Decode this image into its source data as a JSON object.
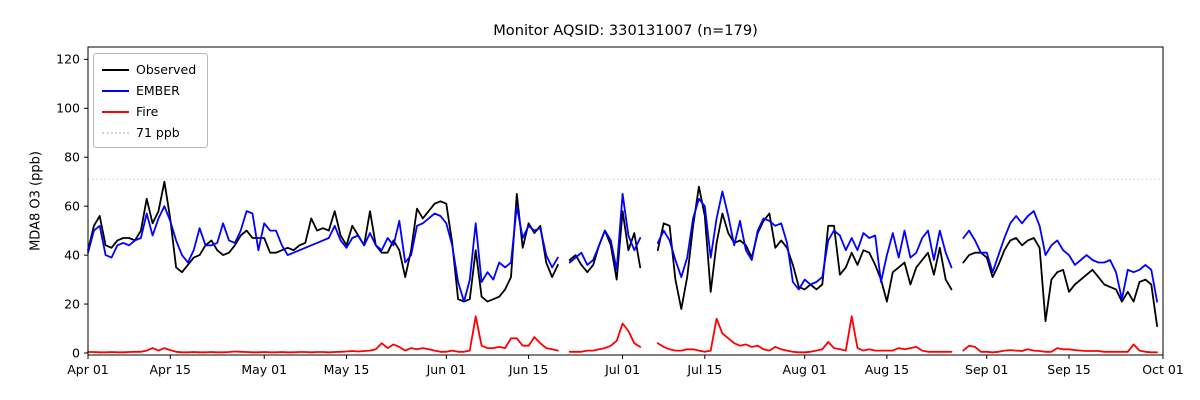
{
  "figure": {
    "title": "Monitor AQSID: 330131007 (n=179)",
    "ylabel": "MDA8 O3 (ppb)"
  },
  "chart_data": {
    "type": "line",
    "title": "Monitor AQSID: 330131007 (n=179)",
    "xlabel": "",
    "ylabel": "MDA8 O3 (ppb)",
    "x_unit": "day",
    "x_range": [
      "Apr 01",
      "Oct 01"
    ],
    "n_days": 183,
    "grid": false,
    "legend_position": "upper left",
    "y_ticks": [
      0,
      20,
      40,
      60,
      80,
      100,
      120
    ],
    "ylim": [
      -1,
      125
    ],
    "x_ticks": [
      {
        "label": "Apr 01",
        "day": 0
      },
      {
        "label": "Apr 15",
        "day": 14
      },
      {
        "label": "May 01",
        "day": 30
      },
      {
        "label": "May 15",
        "day": 44
      },
      {
        "label": "Jun 01",
        "day": 61
      },
      {
        "label": "Jun 15",
        "day": 75
      },
      {
        "label": "Jul 01",
        "day": 91
      },
      {
        "label": "Jul 15",
        "day": 105
      },
      {
        "label": "Aug 01",
        "day": 122
      },
      {
        "label": "Aug 15",
        "day": 136
      },
      {
        "label": "Sep 01",
        "day": 153
      },
      {
        "label": "Sep 15",
        "day": 167
      },
      {
        "label": "Oct 01",
        "day": 183
      }
    ],
    "threshold": {
      "value": 71,
      "label": "71 ppb",
      "color": "#d3d3d3",
      "style": "dotted"
    },
    "legend": [
      {
        "label": "Observed",
        "color": "#000000",
        "style": "solid"
      },
      {
        "label": "EMBER",
        "color": "#0000ff",
        "style": "solid"
      },
      {
        "label": "Fire",
        "color": "#ff0000",
        "style": "solid"
      },
      {
        "label": "71 ppb",
        "color": "#d3d3d3",
        "style": "dotted"
      }
    ],
    "missing_dates": [
      "Jun 21",
      "Jul 05",
      "Jul 06",
      "Aug 27"
    ],
    "series": [
      {
        "name": "Observed",
        "color": "#000000",
        "values": [
          42,
          52,
          56,
          44,
          43,
          46,
          47,
          47,
          46,
          50,
          63,
          53,
          58,
          70,
          55,
          35,
          33,
          36,
          39,
          40,
          44,
          46,
          42,
          40,
          41,
          44,
          48,
          50,
          47,
          47,
          47,
          41,
          41,
          42,
          43,
          42,
          44,
          45,
          55,
          50,
          51,
          50,
          58,
          48,
          44,
          52,
          48,
          44,
          58,
          44,
          41,
          41,
          46,
          42,
          31,
          42,
          59,
          55,
          58,
          61,
          62,
          61,
          45,
          22,
          21,
          22,
          42,
          23,
          21,
          22,
          23,
          26,
          31,
          65,
          43,
          53,
          49,
          52,
          37,
          31,
          36,
          null,
          38,
          40,
          36,
          33,
          36,
          44,
          50,
          44,
          30,
          58,
          42,
          49,
          35,
          null,
          null,
          42,
          53,
          52,
          30,
          18,
          31,
          52,
          68,
          56,
          25,
          45,
          57,
          49,
          45,
          46,
          44,
          39,
          49,
          54,
          57,
          43,
          46,
          43,
          36,
          27,
          26,
          28,
          26,
          28,
          52,
          52,
          32,
          35,
          41,
          36,
          42,
          41,
          36,
          30,
          21,
          33,
          35,
          37,
          28,
          35,
          38,
          41,
          32,
          43,
          30,
          26,
          null,
          37,
          40,
          41,
          41,
          39,
          31,
          36,
          42,
          46,
          47,
          44,
          46,
          47,
          43,
          13,
          30,
          33,
          34,
          25,
          28,
          30,
          32,
          34,
          31,
          28,
          27,
          26,
          21,
          25,
          21,
          29,
          30,
          28,
          11
        ]
      },
      {
        "name": "EMBER",
        "color": "#0000ff",
        "values": [
          41,
          50,
          52,
          40,
          39,
          44,
          45,
          44,
          46,
          47,
          57,
          48,
          55,
          60,
          54,
          46,
          40,
          37,
          42,
          51,
          44,
          44,
          45,
          53,
          46,
          45,
          50,
          58,
          57,
          42,
          53,
          50,
          50,
          44,
          40,
          41,
          42,
          43,
          44,
          45,
          46,
          47,
          52,
          46,
          43,
          47,
          48,
          44,
          49,
          44,
          42,
          47,
          44,
          54,
          37,
          40,
          52,
          53,
          55,
          57,
          56,
          53,
          44,
          29,
          21,
          30,
          53,
          29,
          33,
          30,
          37,
          35,
          37,
          60,
          47,
          52,
          50,
          51,
          40,
          35,
          39,
          null,
          37,
          39,
          41,
          36,
          38,
          44,
          50,
          46,
          34,
          65,
          48,
          42,
          47,
          null,
          null,
          45,
          50,
          46,
          38,
          31,
          39,
          55,
          63,
          60,
          39,
          55,
          66,
          56,
          44,
          54,
          42,
          38,
          50,
          55,
          54,
          52,
          53,
          45,
          29,
          26,
          30,
          28,
          29,
          31,
          46,
          50,
          48,
          42,
          47,
          42,
          49,
          47,
          48,
          29,
          40,
          49,
          39,
          50,
          39,
          41,
          47,
          50,
          38,
          50,
          41,
          35,
          null,
          47,
          50,
          46,
          41,
          41,
          33,
          40,
          47,
          53,
          56,
          53,
          56,
          58,
          52,
          40,
          44,
          46,
          42,
          40,
          36,
          38,
          40,
          38,
          37,
          37,
          38,
          33,
          22,
          34,
          33,
          34,
          36,
          34,
          21
        ]
      },
      {
        "name": "Fire",
        "color": "#ff0000",
        "values": [
          0.4,
          0.4,
          0.3,
          0.3,
          0.4,
          0.3,
          0.3,
          0.4,
          0.5,
          0.5,
          1,
          2,
          1,
          2,
          1.2,
          0.5,
          0.3,
          0.3,
          0.4,
          0.3,
          0.3,
          0.4,
          0.3,
          0.3,
          0.4,
          0.6,
          0.5,
          0.4,
          0.3,
          0.3,
          0.4,
          0.3,
          0.3,
          0.4,
          0.3,
          0.3,
          0.4,
          0.4,
          0.3,
          0.4,
          0.4,
          0.3,
          0.4,
          0.5,
          0.6,
          0.8,
          0.6,
          0.8,
          1,
          1.5,
          4,
          2,
          3.5,
          2.5,
          1,
          2,
          1.5,
          2,
          1.5,
          1,
          0.5,
          0.5,
          1,
          0.5,
          0.5,
          1,
          15,
          3,
          2,
          2,
          2.5,
          2,
          6,
          6,
          3,
          3,
          6.5,
          4,
          2,
          1.5,
          1,
          null,
          0.5,
          0.5,
          0.5,
          1,
          1,
          1.5,
          2,
          3,
          5,
          12,
          9,
          4,
          2.5,
          null,
          null,
          4,
          2.5,
          1.5,
          1,
          1,
          1.5,
          1.5,
          1,
          0.5,
          1,
          14,
          8,
          6,
          4,
          3,
          3.5,
          2.5,
          3,
          1.5,
          1,
          2.5,
          1.5,
          1,
          0.5,
          0.3,
          0.3,
          0.5,
          1,
          1.5,
          4.5,
          2,
          1.5,
          1,
          15,
          2,
          1,
          1.5,
          1,
          1,
          1,
          1,
          2,
          1.5,
          2,
          2.5,
          1,
          0.5,
          0.5,
          0.5,
          0.5,
          0.5,
          null,
          1,
          3,
          2.5,
          0.5,
          0.5,
          0.3,
          0.5,
          1,
          1.2,
          1,
          0.8,
          1.5,
          1,
          0.8,
          0.5,
          0.5,
          2,
          1.5,
          1.5,
          1.2,
          1,
          0.8,
          0.8,
          0.8,
          0.5,
          0.5,
          0.5,
          0.5,
          0.5,
          3.5,
          1,
          0.5,
          0.3,
          0.3
        ]
      }
    ]
  }
}
